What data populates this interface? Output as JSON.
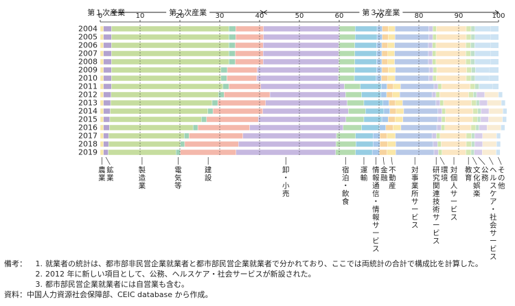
{
  "chart_data": {
    "type": "bar",
    "orientation": "horizontal",
    "stacked": true,
    "xlim": [
      0,
      100
    ],
    "xticks": [
      0,
      10,
      20,
      30,
      40,
      50,
      60,
      70,
      80,
      90,
      100
    ],
    "groups": [
      {
        "label": "第１次産業",
        "from": 0,
        "to": 3
      },
      {
        "label": "第２次産業",
        "from": 3,
        "to": 41
      },
      {
        "label": "第３次産業",
        "from": 41,
        "to": 100
      }
    ],
    "years": [
      "2004",
      "2005",
      "2006",
      "2007",
      "2008",
      "2009",
      "2010",
      "2011",
      "2012",
      "2013",
      "2014",
      "2015",
      "2016",
      "2017",
      "2018",
      "2019"
    ],
    "series": [
      {
        "name": "農業",
        "label_lines": [
          "農",
          "業"
        ],
        "color": "#f7e8a8",
        "values": [
          0.8,
          0.8,
          0.8,
          0.8,
          0.8,
          0.8,
          0.8,
          0.8,
          0.8,
          0.8,
          0.8,
          0.8,
          0.8,
          0.8,
          0.8,
          0.8
        ]
      },
      {
        "name": "鉱業",
        "label_lines": [
          "鉱",
          "業"
        ],
        "color": "#b3a2cf",
        "values": [
          2.0,
          2.0,
          2.0,
          2.0,
          2.0,
          2.0,
          2.0,
          2.0,
          1.9,
          1.8,
          1.7,
          1.6,
          1.5,
          1.3,
          1.3,
          1.2
        ]
      },
      {
        "name": "製造業",
        "label_lines": [
          "製",
          "造",
          "業"
        ],
        "color": "#c6dd9f",
        "values": [
          29.5,
          29.5,
          29.5,
          29.5,
          29.5,
          27.5,
          27.5,
          28.0,
          27.0,
          25.5,
          24.5,
          23.0,
          21.0,
          19.0,
          18.0,
          17.0
        ]
      },
      {
        "name": "電気等",
        "label_lines": [
          "電",
          "気",
          "等"
        ],
        "color": "#9dd2b6",
        "values": [
          1.7,
          1.7,
          1.6,
          1.6,
          1.6,
          1.6,
          1.5,
          1.5,
          1.4,
          1.4,
          1.3,
          1.3,
          1.2,
          1.2,
          1.1,
          1.1
        ]
      },
      {
        "name": "建設",
        "label_lines": [
          "建",
          "設"
        ],
        "color": "#f4b8ab",
        "values": [
          7.0,
          7.0,
          7.0,
          7.0,
          7.0,
          7.5,
          7.5,
          8.0,
          11.5,
          12.0,
          12.5,
          13.0,
          13.0,
          13.5,
          13.5,
          14.0
        ]
      },
      {
        "name": "卸・小売",
        "label_lines": [
          "卸",
          "・",
          "小",
          "売"
        ],
        "color": "#c6b8e0",
        "values": [
          19.0,
          19.0,
          19.0,
          19.0,
          19.0,
          20.5,
          20.5,
          21.0,
          19.0,
          20.5,
          21.5,
          22.0,
          23.5,
          23.5,
          24.5,
          25.0
        ]
      },
      {
        "name": "宿泊・飲食",
        "label_lines": [
          "宿",
          "泊",
          "・",
          "飲",
          "食"
        ],
        "color": "#b5dcb0",
        "values": [
          4.0,
          4.0,
          4.0,
          4.0,
          4.0,
          4.0,
          4.0,
          4.0,
          4.0,
          4.2,
          4.3,
          4.5,
          4.6,
          4.8,
          5.0,
          5.0
        ]
      },
      {
        "name": "運輸",
        "label_lines": [
          "運",
          "輸"
        ],
        "color": "#97cde3",
        "values": [
          5.5,
          5.5,
          5.5,
          5.5,
          5.5,
          5.5,
          5.5,
          5.3,
          4.9,
          4.8,
          4.6,
          4.5,
          4.5,
          4.4,
          4.3,
          4.2
        ]
      },
      {
        "name": "情報通信・情報サービス",
        "label_lines": [
          "情",
          "報",
          "通",
          "信",
          "・",
          "情",
          "報",
          "サ",
          "ー",
          "ビ",
          "ス"
        ],
        "color": "#a7c7ea",
        "values": [
          1.3,
          1.3,
          1.3,
          1.3,
          1.3,
          1.3,
          1.3,
          1.4,
          1.4,
          1.5,
          1.5,
          1.6,
          1.6,
          1.7,
          1.7,
          1.8
        ]
      },
      {
        "name": "金融",
        "label_lines": [
          "金",
          "融"
        ],
        "color": "#f7d39e",
        "values": [
          1.5,
          1.5,
          1.5,
          1.5,
          1.5,
          1.6,
          1.6,
          1.6,
          1.5,
          1.6,
          1.6,
          1.7,
          1.8,
          1.8,
          1.9,
          1.9
        ]
      },
      {
        "name": "不動産",
        "label_lines": [
          "不",
          "動",
          "産"
        ],
        "color": "#fae7a8",
        "values": [
          1.7,
          1.7,
          1.7,
          1.7,
          1.7,
          1.8,
          1.8,
          1.8,
          1.8,
          1.8,
          1.9,
          2.0,
          2.0,
          2.1,
          2.1,
          2.2
        ]
      },
      {
        "name": "対事業所サービス",
        "label_lines": [
          "対",
          "事",
          "業",
          "所",
          "サ",
          "ー",
          "ビ",
          "ス"
        ],
        "color": "#b8c9e8",
        "values": [
          8.5,
          8.5,
          8.5,
          8.5,
          8.5,
          8.5,
          8.5,
          8.4,
          8.1,
          8.4,
          8.6,
          8.7,
          9.0,
          9.2,
          9.4,
          9.6
        ]
      },
      {
        "name": "研究関連技術サービス",
        "label_lines": [
          "研",
          "究",
          "関",
          "連",
          "技",
          "術",
          "サ",
          "ー",
          "ビ",
          "ス"
        ],
        "color": "#ccc6e6",
        "values": [
          1.0,
          1.0,
          1.0,
          1.0,
          1.0,
          1.0,
          1.0,
          1.0,
          1.0,
          1.0,
          1.0,
          1.0,
          1.1,
          1.1,
          1.1,
          1.1
        ]
      },
      {
        "name": "環境",
        "label_lines": [
          "環",
          "境"
        ],
        "color": "#cfe6ad",
        "values": [
          0.9,
          0.9,
          0.9,
          0.9,
          0.9,
          0.9,
          0.9,
          0.9,
          0.9,
          0.9,
          0.9,
          0.9,
          0.9,
          0.9,
          0.9,
          0.9
        ]
      },
      {
        "name": "対個人サービス",
        "label_lines": [
          "対",
          "個",
          "人",
          "サ",
          "ー",
          "ビ",
          "ス"
        ],
        "color": "#fbe6c2",
        "values": [
          7.5,
          7.5,
          7.5,
          7.5,
          7.5,
          7.5,
          7.5,
          7.2,
          7.3,
          7.0,
          6.9,
          6.9,
          6.6,
          6.6,
          6.3,
          6.0
        ]
      },
      {
        "name": "教育",
        "label_lines": [
          "教",
          "育"
        ],
        "color": "#d6e7b3",
        "values": [
          1.2,
          1.2,
          1.2,
          1.2,
          1.2,
          1.2,
          1.2,
          1.2,
          1.2,
          1.2,
          1.2,
          1.2,
          1.2,
          1.3,
          1.3,
          1.3
        ]
      },
      {
        "name": "文化娯楽",
        "label_lines": [
          "文",
          "化",
          "娯",
          "楽"
        ],
        "color": "#bfe0c9",
        "values": [
          1.0,
          1.0,
          1.0,
          1.0,
          1.0,
          1.0,
          1.0,
          1.0,
          0.8,
          0.8,
          0.8,
          0.8,
          0.8,
          0.8,
          0.8,
          0.8
        ]
      },
      {
        "name": "公務",
        "label_lines": [
          "公",
          "務"
        ],
        "color": "#d7cdea",
        "values": [
          0,
          0,
          0,
          0,
          0,
          0,
          0,
          0,
          2.0,
          2.0,
          2.0,
          2.0,
          2.0,
          2.0,
          2.0,
          2.0
        ]
      },
      {
        "name": "ヘルスケア・社会サービス",
        "label_lines": [
          "ヘ",
          "ル",
          "ス",
          "ケ",
          "ア",
          "・",
          "社",
          "会",
          "サ",
          "ー",
          "ビ",
          "ス"
        ],
        "color": "#f9ecd4",
        "values": [
          0,
          0,
          0,
          0,
          0,
          0,
          0,
          0,
          3.5,
          3.5,
          3.5,
          3.5,
          3.5,
          3.5,
          3.5,
          3.5
        ]
      },
      {
        "name": "その他",
        "label_lines": [
          "そ",
          "の",
          "他"
        ],
        "color": "#cde3f3",
        "values": [
          3.9,
          3.9,
          4.0,
          4.0,
          4.0,
          3.5,
          3.6,
          3.5,
          1.0,
          1.0,
          1.0,
          1.0,
          1.0,
          1.0,
          1.0,
          1.0
        ]
      }
    ]
  },
  "notes": {
    "prefix": "備考：",
    "items": [
      {
        "num": "1.",
        "text": "就業者の統計は、都市部非民営企業就業者と都市部民営企業就業者で分かれており、ここでは両統計の合計で構成比を計算した。"
      },
      {
        "num": "2.",
        "text": "2012 年に新しい項目として、公務、ヘルスケア・社会サービスが新設された。"
      },
      {
        "num": "3.",
        "text": "都市部民営企業就業者には自営業も含む。"
      }
    ],
    "source_prefix": "資料：",
    "source": "中国人力資源社会保障部、CEIC database から作成。"
  }
}
